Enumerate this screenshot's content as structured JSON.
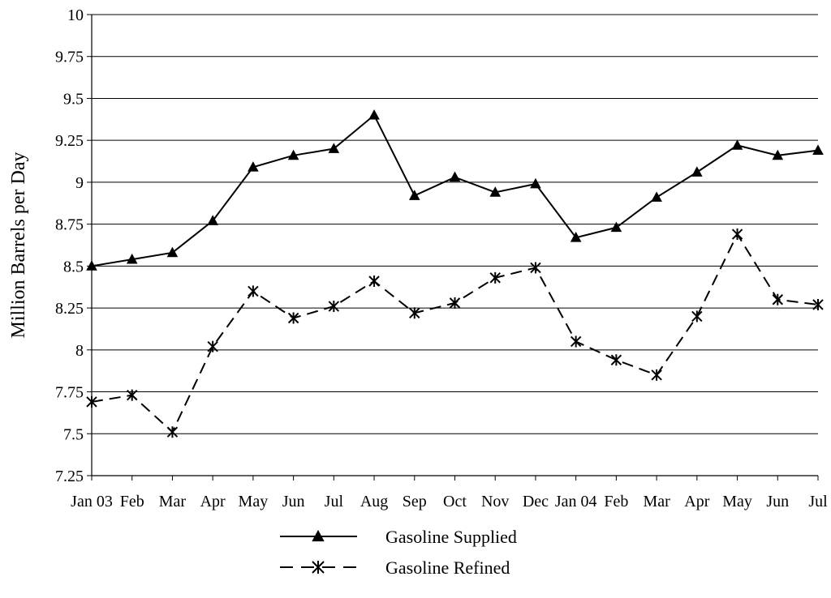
{
  "chart_data": {
    "type": "line",
    "title": "",
    "xlabel": "",
    "ylabel": "Million Barrels per Day",
    "ylim": [
      7.25,
      10
    ],
    "yticks": [
      7.25,
      7.5,
      7.75,
      8,
      8.25,
      8.5,
      8.75,
      9,
      9.25,
      9.5,
      9.75,
      10
    ],
    "ytick_labels": [
      "7.25",
      "7.5",
      "7.75",
      "8",
      "8.25",
      "8.5",
      "8.75",
      "9",
      "9.25",
      "9.5",
      "9.75",
      "10"
    ],
    "grid": "horizontal",
    "legend_position": "bottom",
    "categories": [
      "Jan 03",
      "Feb",
      "Mar",
      "Apr",
      "May",
      "Jun",
      "Jul",
      "Aug",
      "Sep",
      "Oct",
      "Nov",
      "Dec",
      "Jan 04",
      "Feb",
      "Mar",
      "Apr",
      "May",
      "Jun",
      "Jul"
    ],
    "series": [
      {
        "name": "Gasoline Supplied",
        "marker": "triangle",
        "line_style": "solid",
        "color": "#000000",
        "values": [
          8.5,
          8.54,
          8.58,
          8.77,
          9.09,
          9.16,
          9.2,
          9.4,
          8.92,
          9.03,
          8.94,
          8.99,
          8.67,
          8.73,
          8.91,
          9.06,
          9.22,
          9.16,
          9.19
        ]
      },
      {
        "name": "Gasoline Refined",
        "marker": "asterisk",
        "line_style": "dashed",
        "color": "#000000",
        "values": [
          7.69,
          7.73,
          7.51,
          8.02,
          8.35,
          8.19,
          8.26,
          8.41,
          8.22,
          8.28,
          8.43,
          8.49,
          8.05,
          7.94,
          7.85,
          8.2,
          8.69,
          8.3,
          8.27
        ]
      }
    ]
  }
}
